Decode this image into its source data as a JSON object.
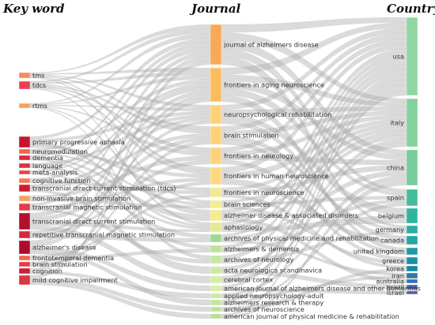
{
  "chart_data": {
    "type": "sankey",
    "column_titles": [
      "Key word",
      "Journal",
      "Country"
    ],
    "keywords": [
      {
        "label": "tms",
        "color": "#f58c5a"
      },
      {
        "label": "tdcs",
        "color": "#e8404f"
      },
      {
        "label": "rtms",
        "color": "#f8a05a"
      },
      {
        "label": "primary progressive aphasia",
        "color": "#c7162f"
      },
      {
        "label": "neuromodulation",
        "color": "#f06548"
      },
      {
        "label": "dementia",
        "color": "#d62a3e"
      },
      {
        "label": "language",
        "color": "#d5343d"
      },
      {
        "label": "meta-analysis",
        "color": "#e8424a"
      },
      {
        "label": "cognitive function",
        "color": "#f37b52"
      },
      {
        "label": "transcranial direct current stimulation (tdcs)",
        "color": "#cb1d36"
      },
      {
        "label": "non-invasive brain stimulation",
        "color": "#f8a05a"
      },
      {
        "label": "transcranial magnetic stimulation",
        "color": "#e23c48"
      },
      {
        "label": "transcranial direct current stimulation",
        "color": "#b30f2e"
      },
      {
        "label": "repetitive transcranial magnetic stimulation",
        "color": "#d62a3e"
      },
      {
        "label": "alzheimer's disease",
        "color": "#ad0c2c"
      },
      {
        "label": "frontotemporal dementia",
        "color": "#f06548"
      },
      {
        "label": "brain stimulation",
        "color": "#e23c48"
      },
      {
        "label": "cognition",
        "color": "#c9213a"
      },
      {
        "label": "mild cognitive impairment",
        "color": "#d93742"
      }
    ],
    "journals": [
      {
        "label": "journal of alzheimers disease",
        "color": "#f9a856"
      },
      {
        "label": "frontiers in aging neuroscience",
        "color": "#fbbc5e"
      },
      {
        "label": "neuropsychological rehabilitation",
        "color": "#fdd27a"
      },
      {
        "label": "brain stimulation",
        "color": "#fdd27a"
      },
      {
        "label": "frontiers in neurology",
        "color": "#fed27c"
      },
      {
        "label": "frontiers in human neuroscience",
        "color": "#fed983"
      },
      {
        "label": "frontiers in neuroscience",
        "color": "#f2ea92"
      },
      {
        "label": "brain sciences",
        "color": "#f5ec90"
      },
      {
        "label": "alzheimer disease & associated disorders",
        "color": "#f2ec94"
      },
      {
        "label": "aphasiology",
        "color": "#e7ea94"
      },
      {
        "label": "archives of physical medicine and rehabilitation",
        "color": "#9fd98f"
      },
      {
        "label": "alzheimers & dementia",
        "color": "#b9e39a"
      },
      {
        "label": "archives of neurology",
        "color": "#c5e8a0"
      },
      {
        "label": "acta neurologica scandinavica",
        "color": "#cbe9a3"
      },
      {
        "label": "cerebral cortex",
        "color": "#d5eda8"
      },
      {
        "label": "american journal of alzheimers disease and other dementias",
        "color": "#d9eeaa"
      },
      {
        "label": "applied neuropsychology-adult",
        "color": "#cde9a4"
      },
      {
        "label": "alzheimers research & therapy",
        "color": "#c3e6a0"
      },
      {
        "label": "archives of neuroscience",
        "color": "#bde39c"
      },
      {
        "label": "american journal of physical medicine & rehabilitation",
        "color": "#b5df98"
      }
    ],
    "countries": [
      {
        "label": "usa",
        "color": "#8fd6a0"
      },
      {
        "label": "italy",
        "color": "#82d29c"
      },
      {
        "label": "china",
        "color": "#76cd9a"
      },
      {
        "label": "spain",
        "color": "#45bd9c"
      },
      {
        "label": "belgium",
        "color": "#2fb49e"
      },
      {
        "label": "germany",
        "color": "#2aae9f"
      },
      {
        "label": "canada",
        "color": "#24a6a1"
      },
      {
        "label": "united kingdom",
        "color": "#1f9aa3"
      },
      {
        "label": "greece",
        "color": "#1c8fa4"
      },
      {
        "label": "korea",
        "color": "#1b84a5"
      },
      {
        "label": "iran",
        "color": "#2c7ba8"
      },
      {
        "label": "australia",
        "color": "#3a6fab"
      },
      {
        "label": "brazil",
        "color": "#4a63ad"
      },
      {
        "label": "israel",
        "color": "#5b58ad"
      }
    ],
    "links_keyword_journal": [
      [
        0,
        0
      ],
      [
        0,
        1
      ],
      [
        0,
        2
      ],
      [
        0,
        3
      ],
      [
        0,
        5
      ],
      [
        0,
        7
      ],
      [
        1,
        0
      ],
      [
        1,
        1
      ],
      [
        1,
        3
      ],
      [
        1,
        4
      ],
      [
        1,
        5
      ],
      [
        1,
        9
      ],
      [
        2,
        0
      ],
      [
        2,
        1
      ],
      [
        2,
        2
      ],
      [
        2,
        4
      ],
      [
        2,
        8
      ],
      [
        2,
        12
      ],
      [
        3,
        0
      ],
      [
        3,
        2
      ],
      [
        3,
        9
      ],
      [
        3,
        6
      ],
      [
        4,
        1
      ],
      [
        4,
        5
      ],
      [
        4,
        7
      ],
      [
        5,
        0
      ],
      [
        5,
        8
      ],
      [
        5,
        11
      ],
      [
        6,
        2
      ],
      [
        6,
        9
      ],
      [
        7,
        0
      ],
      [
        7,
        1
      ],
      [
        7,
        10
      ],
      [
        8,
        1
      ],
      [
        8,
        6
      ],
      [
        9,
        2
      ],
      [
        9,
        3
      ],
      [
        9,
        13
      ],
      [
        10,
        4
      ],
      [
        10,
        7
      ],
      [
        11,
        0
      ],
      [
        11,
        5
      ],
      [
        11,
        12
      ],
      [
        12,
        1
      ],
      [
        12,
        3
      ],
      [
        12,
        9
      ],
      [
        12,
        14
      ],
      [
        13,
        2
      ],
      [
        13,
        4
      ],
      [
        13,
        10
      ],
      [
        14,
        0
      ],
      [
        14,
        1
      ],
      [
        14,
        15
      ],
      [
        14,
        17
      ],
      [
        15,
        6
      ],
      [
        15,
        11
      ],
      [
        16,
        3
      ],
      [
        16,
        5
      ],
      [
        17,
        1
      ],
      [
        17,
        16
      ],
      [
        18,
        0
      ],
      [
        18,
        18
      ],
      [
        18,
        19
      ]
    ],
    "links_journal_country": [
      [
        0,
        0
      ],
      [
        0,
        1
      ],
      [
        0,
        2
      ],
      [
        0,
        3
      ],
      [
        0,
        5
      ],
      [
        1,
        0
      ],
      [
        1,
        1
      ],
      [
        1,
        2
      ],
      [
        1,
        3
      ],
      [
        1,
        7
      ],
      [
        2,
        0
      ],
      [
        2,
        1
      ],
      [
        2,
        4
      ],
      [
        2,
        6
      ],
      [
        3,
        0
      ],
      [
        3,
        1
      ],
      [
        3,
        5
      ],
      [
        3,
        7
      ],
      [
        4,
        0
      ],
      [
        4,
        1
      ],
      [
        4,
        2
      ],
      [
        4,
        8
      ],
      [
        5,
        0
      ],
      [
        5,
        1
      ],
      [
        5,
        6
      ],
      [
        6,
        1
      ],
      [
        6,
        2
      ],
      [
        6,
        9
      ],
      [
        7,
        1
      ],
      [
        7,
        3
      ],
      [
        7,
        8
      ],
      [
        8,
        0
      ],
      [
        8,
        1
      ],
      [
        8,
        11
      ],
      [
        9,
        0
      ],
      [
        9,
        1
      ],
      [
        9,
        4
      ],
      [
        10,
        0
      ],
      [
        10,
        2
      ],
      [
        10,
        10
      ],
      [
        11,
        0
      ],
      [
        11,
        3
      ],
      [
        12,
        0
      ],
      [
        12,
        5
      ],
      [
        13,
        1
      ],
      [
        13,
        12
      ],
      [
        14,
        0
      ],
      [
        14,
        1
      ],
      [
        15,
        0
      ],
      [
        15,
        13
      ],
      [
        16,
        2
      ],
      [
        16,
        10
      ],
      [
        17,
        0
      ],
      [
        17,
        3
      ],
      [
        18,
        9
      ],
      [
        19,
        0
      ],
      [
        19,
        2
      ]
    ]
  }
}
